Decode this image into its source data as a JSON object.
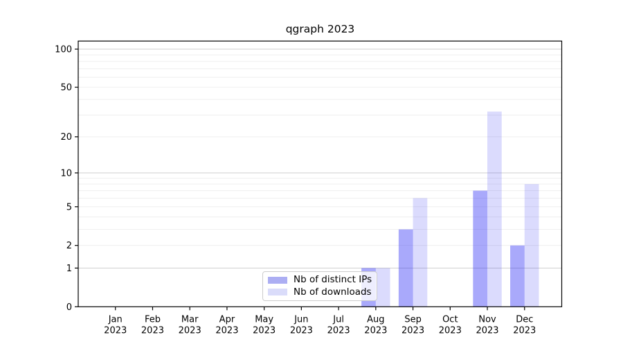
{
  "chart_data": {
    "type": "bar",
    "title": "qgraph 2023",
    "categories": [
      "Jan",
      "Feb",
      "Mar",
      "Apr",
      "May",
      "Jun",
      "Jul",
      "Aug",
      "Sep",
      "Oct",
      "Nov",
      "Dec"
    ],
    "category_year": "2023",
    "series": [
      {
        "name": "Nb of distinct IPs",
        "color": "rgba(30,30,245,0.38)",
        "swatch_color": "#acaef3",
        "values": [
          0,
          0,
          0,
          0,
          0,
          0,
          0,
          1,
          3,
          0,
          7,
          2
        ]
      },
      {
        "name": "Nb of downloads",
        "color": "rgba(30,30,245,0.16)",
        "swatch_color": "#dadcfa",
        "values": [
          0,
          0,
          0,
          0,
          0,
          0,
          0,
          1,
          6,
          0,
          32,
          8
        ]
      }
    ],
    "y_scale": "log1p",
    "y_ticks": [
      0,
      1,
      2,
      5,
      10,
      20,
      50,
      100
    ],
    "y_minor_ticks": [
      2,
      3,
      4,
      5,
      6,
      7,
      8,
      9,
      20,
      30,
      40,
      50,
      60,
      70,
      80,
      90
    ],
    "y_major_gridlines": [
      1,
      10,
      100
    ],
    "ylim": [
      0,
      116
    ],
    "xlabel": "",
    "ylabel": "",
    "grid": "horizontal",
    "legend_position": "lower center-left inside plot"
  },
  "colors": {
    "background": "#ffffff",
    "spine": "#000000",
    "major_gridline": "#cfcfcf",
    "minor_gridline": "#efefef",
    "tick_label": "#000000",
    "legend_border": "#cccccc",
    "legend_background": "rgba(255,255,255,0.8)"
  }
}
